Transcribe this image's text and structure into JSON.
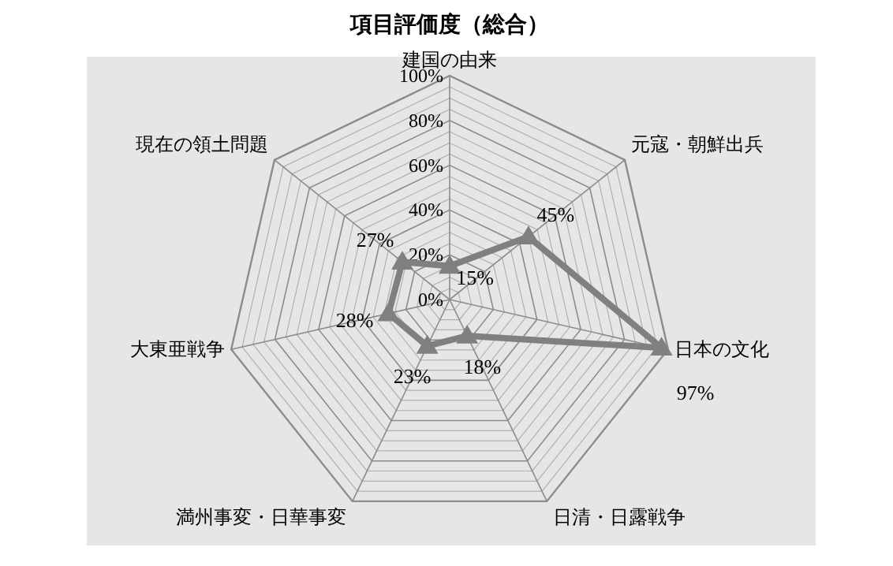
{
  "chart_data": {
    "type": "radar",
    "title": "項目評価度（総合）",
    "categories": [
      "建国の由来",
      "元寇・朝鮮出兵",
      "日本の文化",
      "日清・日露戦争",
      "満州事変・日華事変",
      "大東亜戦争",
      "現在の領土問題"
    ],
    "series": [
      {
        "color": "#808080",
        "values": [
          15,
          45,
          97,
          18,
          23,
          28,
          27
        ],
        "value_labels": [
          "15%",
          "45%",
          "97%",
          "18%",
          "23%",
          "28%",
          "27%"
        ]
      }
    ],
    "ylim": [
      0,
      100
    ],
    "yticks": [
      {
        "value": 0,
        "label": "0%"
      },
      {
        "value": 20,
        "label": "20%"
      },
      {
        "value": 40,
        "label": "40%"
      },
      {
        "value": 60,
        "label": "60%"
      },
      {
        "value": 80,
        "label": "80%"
      },
      {
        "value": 100,
        "label": "100%"
      }
    ],
    "grid": true,
    "marker": "triangle"
  }
}
